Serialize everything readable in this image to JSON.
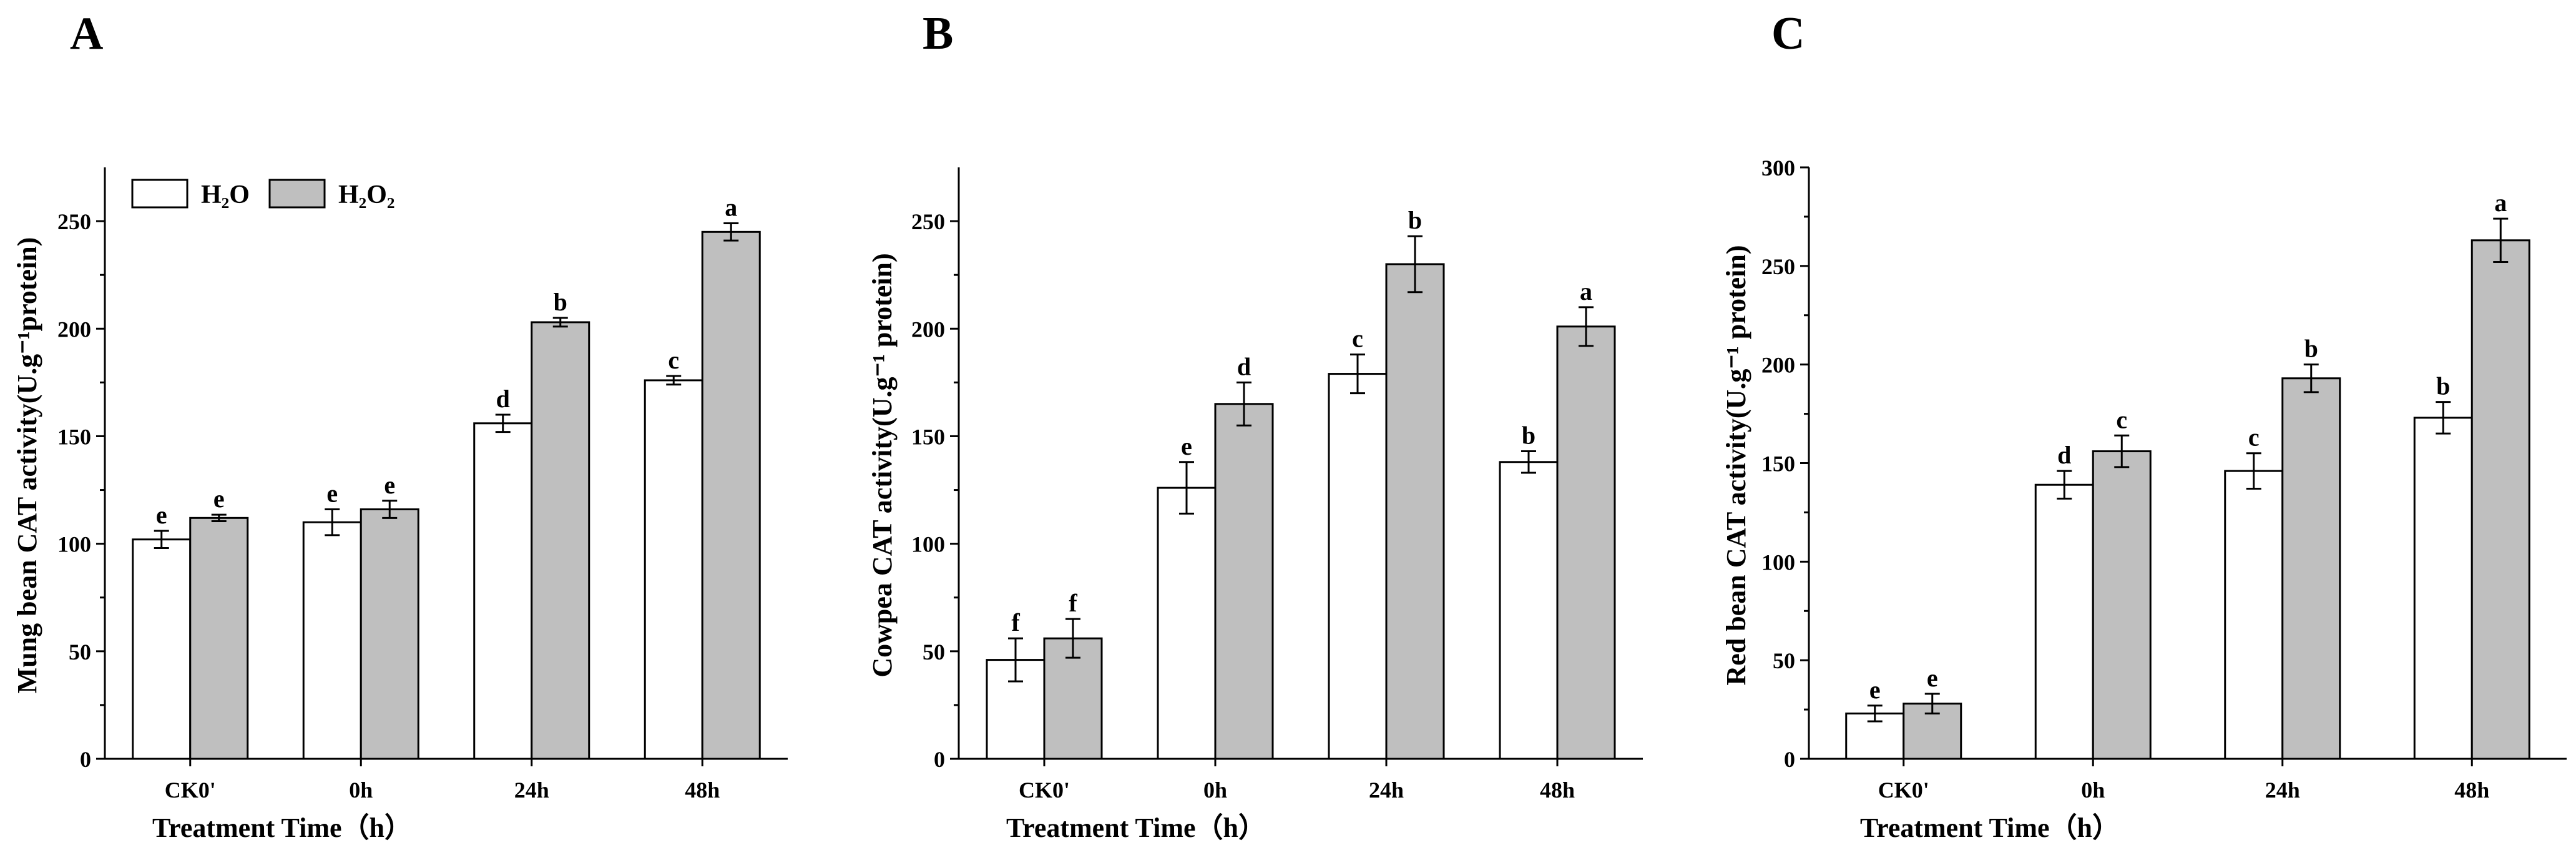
{
  "legend": {
    "h2o_label": "H₂O",
    "h2o2_label": "H₂O₂",
    "h2o_color": "#ffffff",
    "h2o2_color": "#bfbfbf"
  },
  "chart_data": [
    {
      "panel": "A",
      "type": "bar",
      "xlabel": "Treatment Time（h）",
      "ylabel": "Mung bean CAT activity(U.g⁻¹protein)",
      "ylim": [
        0,
        275
      ],
      "yticks": [
        0,
        50,
        100,
        150,
        200,
        250
      ],
      "categories": [
        "CK0'",
        "0h",
        "24h",
        "48h"
      ],
      "show_legend": true,
      "series": [
        {
          "name": "H₂O",
          "values": [
            102,
            110,
            156,
            176
          ],
          "errors": [
            4,
            6,
            4,
            2
          ],
          "labels": [
            "e",
            "e",
            "d",
            "c"
          ]
        },
        {
          "name": "H₂O₂",
          "values": [
            112,
            116,
            203,
            245
          ],
          "errors": [
            1.5,
            4,
            2,
            4
          ],
          "labels": [
            "e",
            "e",
            "b",
            "a"
          ]
        }
      ]
    },
    {
      "panel": "B",
      "type": "bar",
      "xlabel": "Treatment Time（h）",
      "ylabel": "Cowpea CAT activity(U.g⁻¹ protein)",
      "ylim": [
        0,
        275
      ],
      "yticks": [
        0,
        50,
        100,
        150,
        200,
        250
      ],
      "categories": [
        "CK0'",
        "0h",
        "24h",
        "48h"
      ],
      "show_legend": false,
      "series": [
        {
          "name": "H₂O",
          "values": [
            46,
            126,
            179,
            138
          ],
          "errors": [
            10,
            12,
            9,
            5
          ],
          "labels": [
            "f",
            "e",
            "c",
            "b"
          ]
        },
        {
          "name": "H₂O₂",
          "values": [
            56,
            165,
            230,
            201
          ],
          "errors": [
            9,
            10,
            13,
            9
          ],
          "labels": [
            "f",
            "d",
            "b",
            "a"
          ]
        }
      ]
    },
    {
      "panel": "C",
      "type": "bar",
      "xlabel": "Treatment Time（h）",
      "ylabel": "Red bean CAT activity(U.g⁻¹ protein)",
      "ylim": [
        0,
        300
      ],
      "yticks": [
        0,
        50,
        100,
        150,
        200,
        250,
        300
      ],
      "categories": [
        "CK0'",
        "0h",
        "24h",
        "48h"
      ],
      "show_legend": false,
      "series": [
        {
          "name": "H₂O",
          "values": [
            23,
            139,
            146,
            173
          ],
          "errors": [
            4,
            7,
            9,
            8
          ],
          "labels": [
            "e",
            "d",
            "c",
            "b"
          ]
        },
        {
          "name": "H₂O₂",
          "values": [
            28,
            156,
            193,
            263
          ],
          "errors": [
            5,
            8,
            7,
            11
          ],
          "labels": [
            "e",
            "c",
            "b",
            "a"
          ]
        }
      ]
    }
  ]
}
